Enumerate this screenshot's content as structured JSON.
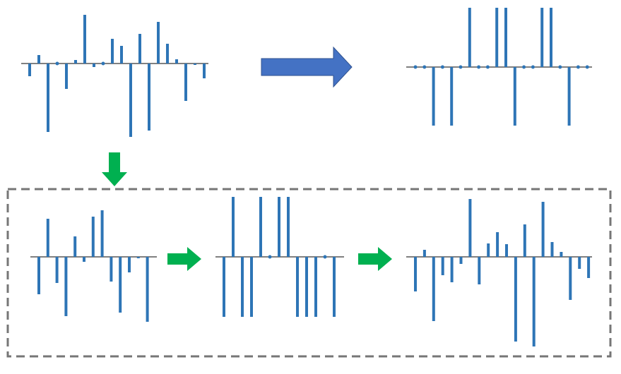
{
  "panels": [
    {
      "values": [
        -18,
        12,
        -97,
        0,
        -36,
        5,
        69,
        -5,
        0,
        35,
        25,
        -104,
        42,
        -95,
        59,
        28,
        6,
        -53,
        -2,
        -21
      ]
    },
    {
      "values": [
        0,
        0,
        -83,
        0,
        -83,
        0,
        84,
        0,
        0,
        84,
        84,
        -83,
        0,
        0,
        84,
        84,
        0,
        -83,
        0,
        0
      ]
    },
    {
      "values": [
        -53,
        54,
        -37,
        -84,
        29,
        -7,
        57,
        66,
        -35,
        -79,
        -22,
        -2,
        -92
      ]
    },
    {
      "values": [
        -85,
        85,
        -85,
        -85,
        85,
        0,
        85,
        85,
        -85,
        -85,
        -85,
        0,
        -85
      ]
    },
    {
      "values": [
        -49,
        10,
        -91,
        -26,
        -36,
        -10,
        82,
        -39,
        19,
        35,
        18,
        -120,
        46,
        -127,
        78,
        21,
        7,
        -61,
        -17,
        -30
      ]
    }
  ]
}
